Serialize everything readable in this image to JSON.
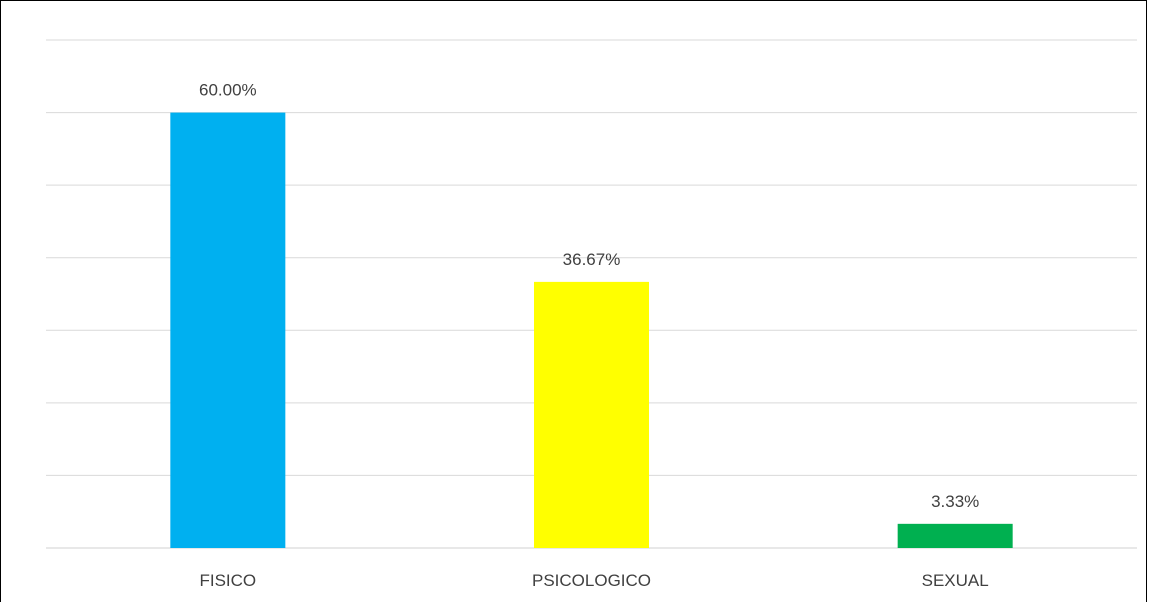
{
  "chart_data": {
    "type": "bar",
    "categories": [
      "FISICO",
      "PSICOLOGICO",
      "SEXUAL"
    ],
    "values": [
      60.0,
      36.67,
      3.33
    ],
    "data_labels": [
      "60.00%",
      "36.67%",
      "3.33%"
    ],
    "colors": [
      "#00b0f0",
      "#ffff00",
      "#00b050"
    ],
    "title": "",
    "xlabel": "",
    "ylabel": "",
    "ylim": [
      0,
      70
    ],
    "grid": true,
    "legend": "none"
  }
}
